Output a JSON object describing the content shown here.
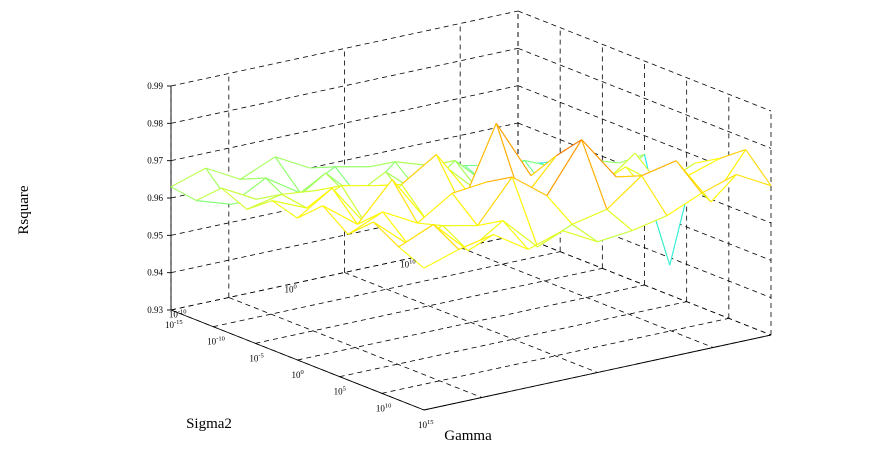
{
  "chart_data": {
    "type": "surface",
    "xlabel": "Gamma",
    "ylabel": "Sigma2",
    "zlabel": "Rsquare",
    "x_scale": "log",
    "y_scale": "log",
    "xlim": [
      1e-15,
      1000000000000000.0
    ],
    "ylim": [
      1e-15,
      1000000000000000.0
    ],
    "zlim": [
      0.93,
      0.99
    ],
    "x_ticks": [
      {
        "base": "10",
        "exp": "-15"
      },
      {
        "base": "10",
        "exp": "-10"
      },
      {
        "base": "10",
        "exp": "-5"
      },
      {
        "base": "10",
        "exp": "0"
      },
      {
        "base": "10",
        "exp": "5"
      },
      {
        "base": "10",
        "exp": "10"
      },
      {
        "base": "10",
        "exp": "15"
      }
    ],
    "y_ticks": [
      {
        "base": "10",
        "exp": "-10"
      },
      {
        "base": "10",
        "exp": "0"
      },
      {
        "base": "10",
        "exp": "10"
      }
    ],
    "z_ticks": [
      "0.93",
      "0.94",
      "0.95",
      "0.96",
      "0.97",
      "0.98",
      "0.99"
    ],
    "grid": true,
    "colormap": [
      "#00008f",
      "#0066ff",
      "#00e5ff",
      "#7fff7f",
      "#ffff00",
      "#ff8c00",
      "#cc0000"
    ],
    "x": [
      1e-15,
      1e-12,
      1e-09,
      1e-06,
      0.001,
      1.0,
      1000.0,
      1000000.0,
      1000000000.0,
      1000000000000.0,
      1000000000000000.0
    ],
    "y": [
      1e-15,
      1e-12,
      1e-09,
      1e-06,
      0.001,
      1.0,
      1000.0,
      1000000.0,
      1000000000.0,
      1000000000000.0,
      1000000000000000.0
    ],
    "z": [
      [
        0.963,
        0.962,
        0.968,
        0.965,
        0.97,
        0.968,
        0.974,
        0.969,
        0.975,
        0.971,
        0.968
      ],
      [
        0.966,
        0.959,
        0.963,
        0.967,
        0.966,
        0.974,
        0.967,
        0.973,
        0.967,
        0.975,
        0.971
      ],
      [
        0.961,
        0.964,
        0.96,
        0.966,
        0.97,
        0.962,
        0.977,
        0.968,
        0.97,
        0.966,
        0.973
      ],
      [
        0.965,
        0.958,
        0.966,
        0.962,
        0.968,
        0.971,
        0.964,
        0.974,
        0.968,
        0.972,
        0.967
      ],
      [
        0.96,
        0.963,
        0.957,
        0.967,
        0.961,
        0.977,
        0.966,
        0.975,
        0.979,
        0.963,
        0.97
      ],
      [
        0.957,
        0.961,
        0.965,
        0.959,
        0.969,
        0.964,
        0.986,
        0.968,
        0.972,
        0.967,
        0.965
      ],
      [
        0.955,
        0.958,
        0.962,
        0.966,
        0.96,
        0.972,
        0.97,
        0.978,
        0.985,
        0.969,
        0.966
      ],
      [
        0.952,
        0.956,
        0.96,
        0.957,
        0.966,
        0.961,
        0.975,
        0.967,
        0.973,
        0.976,
        0.968
      ],
      [
        0.95,
        0.953,
        0.958,
        0.962,
        0.956,
        0.968,
        0.963,
        0.971,
        0.966,
        0.978,
        0.972
      ],
      [
        0.948,
        0.951,
        0.947,
        0.958,
        0.963,
        0.959,
        0.97,
        0.964,
        0.969,
        0.965,
        0.975
      ],
      [
        0.949,
        0.952,
        0.956,
        0.953,
        0.96,
        0.965,
        0.938,
        0.968,
        0.972,
        0.977,
        0.97
      ]
    ]
  }
}
